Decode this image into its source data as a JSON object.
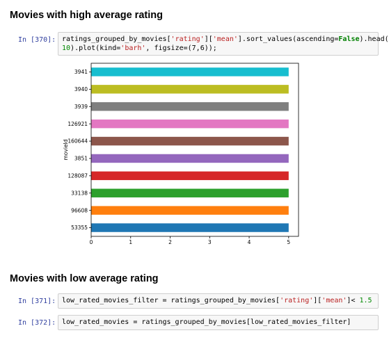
{
  "section_high": {
    "heading": "Movies with high average rating"
  },
  "cell_370": {
    "prompt": "In [370]:",
    "line1_a": "ratings_grouped_by_movies[",
    "line1_s1": "'rating'",
    "line1_b": "][",
    "line1_s2": "'mean'",
    "line1_c": "].sort_values(ascending=",
    "line1_kw": "False",
    "line1_d": ").head(",
    "line2_num": "10",
    "line2_a": ").plot(kind=",
    "line2_s": "'barh'",
    "line2_b": ", figsize=(7,6));"
  },
  "chart_data": {
    "type": "bar",
    "orientation": "horizontal",
    "title": "",
    "xlabel": "",
    "ylabel": "movieId",
    "xlim": [
      0,
      5.25
    ],
    "xticks": [
      "0",
      "1",
      "2",
      "3",
      "4",
      "5"
    ],
    "grid": false,
    "categories": [
      "53355",
      "96608",
      "33138",
      "128087",
      "3851",
      "160644",
      "126921",
      "3939",
      "3940",
      "3941"
    ],
    "values": [
      5,
      5,
      5,
      5,
      5,
      5,
      5,
      5,
      5,
      5
    ],
    "colors": [
      "#1f77b4",
      "#ff7f0e",
      "#2ca02c",
      "#d62728",
      "#9467bd",
      "#8c564b",
      "#e377c2",
      "#7f7f7f",
      "#bcbd22",
      "#17becf"
    ]
  },
  "section_low": {
    "heading": "Movies with low average rating"
  },
  "cell_371": {
    "prompt": "In [371]:",
    "a": "low_rated_movies_filter = ratings_grouped_by_movies[",
    "s1": "'rating'",
    "b": "][",
    "s2": "'mean'",
    "c": "]< ",
    "num": "1.5"
  },
  "cell_372": {
    "prompt": "In [372]:",
    "code": "low_rated_movies = ratings_grouped_by_movies[low_rated_movies_filter]"
  }
}
